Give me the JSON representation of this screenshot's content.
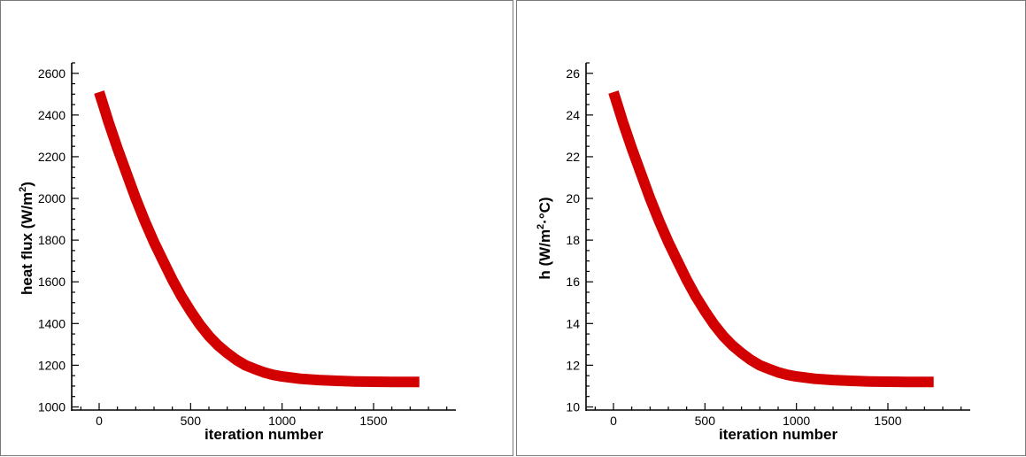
{
  "chart_data": [
    {
      "type": "line",
      "title": "",
      "xlabel": "iteration number",
      "ylabel_main": "heat flux (W/m",
      "ylabel_sup": "2",
      "ylabel_tail": ")",
      "xlim": [
        -150,
        1950
      ],
      "ylim": [
        985,
        2650
      ],
      "xticks": [
        0,
        500,
        1000,
        1500
      ],
      "yticks": [
        1000,
        1200,
        1400,
        1600,
        1800,
        2000,
        2200,
        2400,
        2600
      ],
      "series": [
        {
          "color": "#d20000",
          "x": [
            0,
            25,
            50,
            100,
            150,
            200,
            250,
            300,
            350,
            400,
            450,
            500,
            550,
            600,
            650,
            700,
            750,
            800,
            850,
            900,
            950,
            1000,
            1100,
            1200,
            1300,
            1400,
            1500,
            1600,
            1750
          ],
          "y": [
            2510,
            2440,
            2370,
            2240,
            2120,
            2000,
            1890,
            1790,
            1700,
            1610,
            1530,
            1460,
            1395,
            1340,
            1295,
            1258,
            1226,
            1200,
            1182,
            1166,
            1154,
            1146,
            1135,
            1129,
            1125,
            1122,
            1121,
            1120,
            1120
          ]
        }
      ]
    },
    {
      "type": "line",
      "title": "",
      "xlabel": "iteration number",
      "ylabel_main": "h (W/m",
      "ylabel_sup": "2",
      "ylabel_tail": "·°C)",
      "xlim": [
        -150,
        1950
      ],
      "ylim": [
        9.85,
        26.5
      ],
      "xticks": [
        0,
        500,
        1000,
        1500
      ],
      "yticks": [
        10,
        12,
        14,
        16,
        18,
        20,
        22,
        24,
        26
      ],
      "series": [
        {
          "color": "#d20000",
          "x": [
            0,
            25,
            50,
            100,
            150,
            200,
            250,
            300,
            350,
            400,
            450,
            500,
            550,
            600,
            650,
            700,
            750,
            800,
            850,
            900,
            950,
            1000,
            1100,
            1200,
            1300,
            1400,
            1500,
            1600,
            1750
          ],
          "y": [
            25.1,
            24.4,
            23.7,
            22.4,
            21.2,
            20.0,
            18.9,
            17.9,
            17.0,
            16.1,
            15.3,
            14.6,
            13.95,
            13.4,
            12.95,
            12.58,
            12.26,
            12.0,
            11.82,
            11.66,
            11.54,
            11.46,
            11.35,
            11.29,
            11.25,
            11.22,
            11.21,
            11.2,
            11.2
          ]
        }
      ]
    }
  ]
}
